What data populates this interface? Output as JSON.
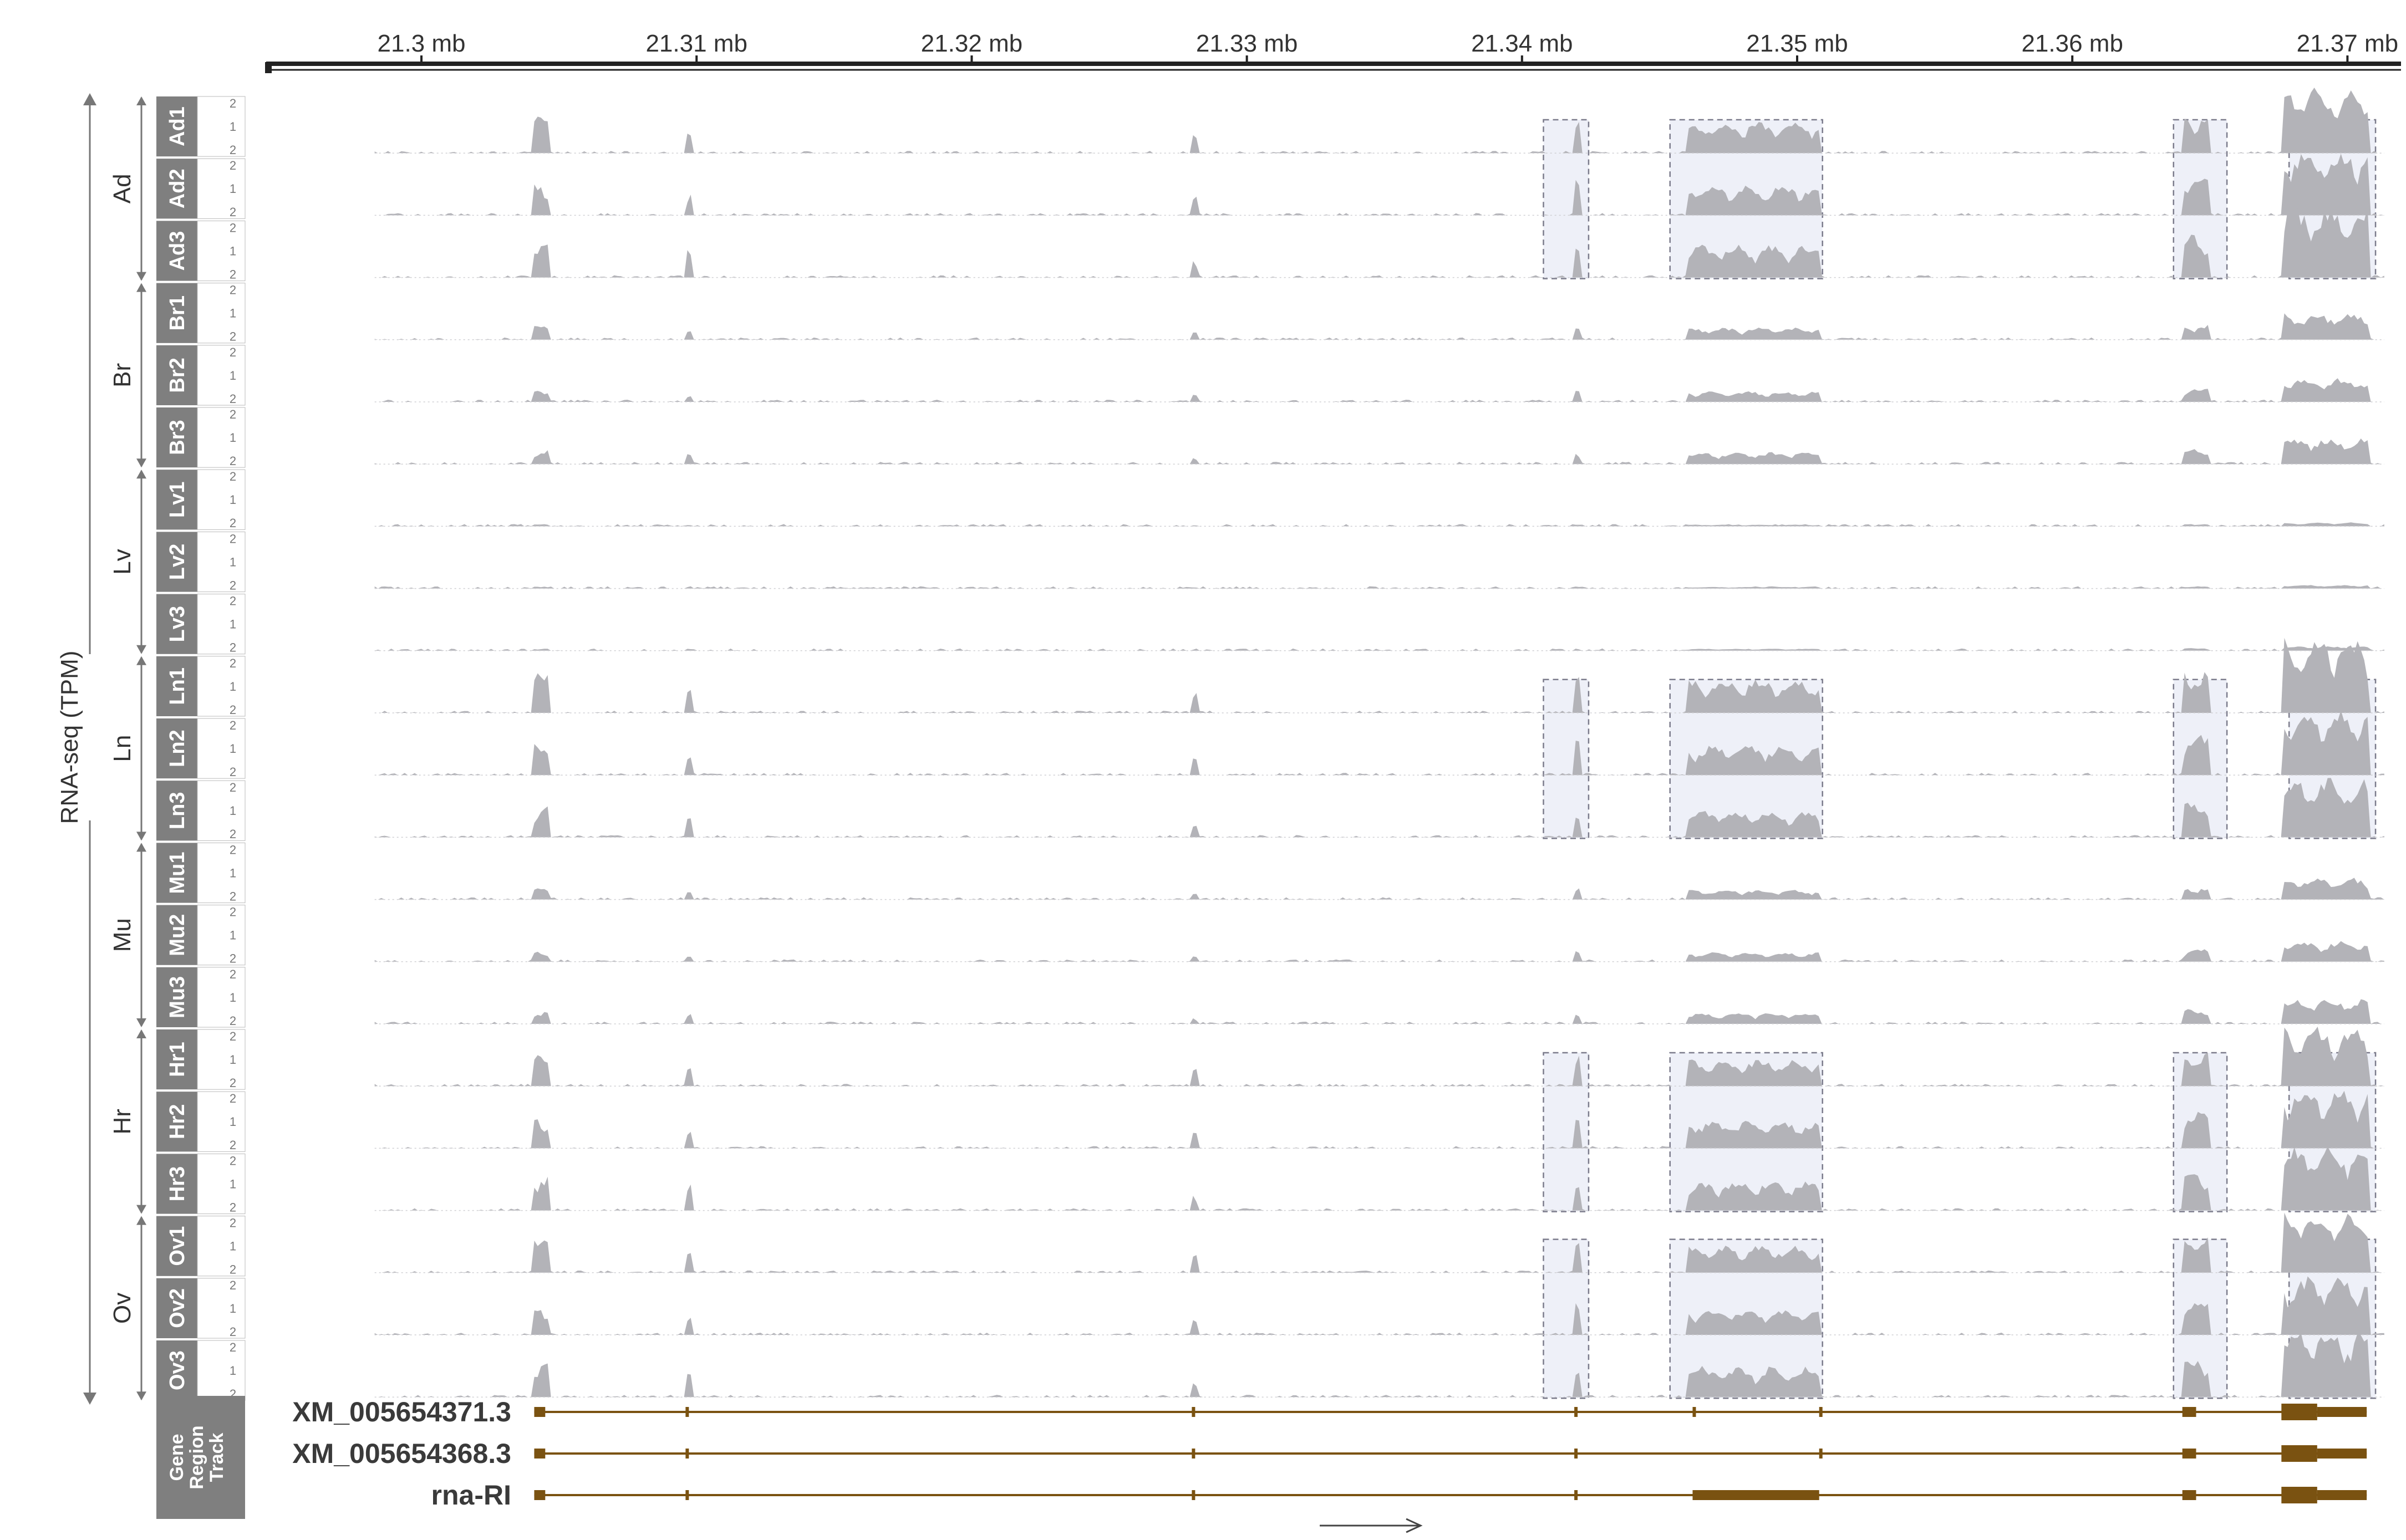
{
  "colors": {
    "coverage": "#b3b3b8",
    "sample_box": "#7f7f7f",
    "highlight_fill": "#eef0f8",
    "highlight_stroke": "#7c7c8c",
    "gene": "#7a5211",
    "axis": "#222222"
  },
  "axis": {
    "ticks": [
      {
        "pos": 21.3,
        "label": "21.3 mb"
      },
      {
        "pos": 21.31,
        "label": "21.31 mb"
      },
      {
        "pos": 21.32,
        "label": "21.32 mb"
      },
      {
        "pos": 21.33,
        "label": "21.33 mb"
      },
      {
        "pos": 21.34,
        "label": "21.34 mb"
      },
      {
        "pos": 21.35,
        "label": "21.35 mb"
      },
      {
        "pos": 21.36,
        "label": "21.36 mb"
      },
      {
        "pos": 21.37,
        "label": "21.37 mb"
      }
    ],
    "unit": "mb"
  },
  "y_label": "RNA-seq (TPM)",
  "scale_labels": [
    "2",
    "1",
    "2"
  ],
  "groups": [
    {
      "name": "Ad",
      "samples": [
        "Ad1",
        "Ad2",
        "Ad3"
      ],
      "highlighted": true
    },
    {
      "name": "Br",
      "samples": [
        "Br1",
        "Br2",
        "Br3"
      ],
      "highlighted": false
    },
    {
      "name": "Lv",
      "samples": [
        "Lv1",
        "Lv2",
        "Lv3"
      ],
      "highlighted": false
    },
    {
      "name": "Ln",
      "samples": [
        "Ln1",
        "Ln2",
        "Ln3"
      ],
      "highlighted": true
    },
    {
      "name": "Mu",
      "samples": [
        "Mu1",
        "Mu2",
        "Mu3"
      ],
      "highlighted": false
    },
    {
      "name": "Hr",
      "samples": [
        "Hr1",
        "Hr2",
        "Hr3"
      ],
      "highlighted": true
    },
    {
      "name": "Ov",
      "samples": [
        "Ov1",
        "Ov2",
        "Ov3"
      ],
      "highlighted": true
    }
  ],
  "highlight_regions_mb": [
    [
      21.3409,
      21.3423
    ],
    [
      21.3455,
      21.3508
    ],
    [
      21.3638,
      21.3655
    ],
    [
      21.368,
      21.3709
    ]
  ],
  "gene_track": {
    "label_lines": [
      "Gene",
      "Region",
      "Track"
    ],
    "direction": "forward",
    "transcripts": [
      {
        "name": "XM_005654371.3",
        "start": 21.3041,
        "end": 21.3707,
        "exons": [
          [
            21.3041,
            21.3045
          ],
          [
            21.3096,
            21.3097
          ],
          [
            21.328,
            21.3281
          ],
          [
            21.3419,
            21.342
          ],
          [
            21.3462,
            21.3463
          ],
          [
            21.3508,
            21.3509
          ],
          [
            21.364,
            21.3645
          ],
          [
            21.3676,
            21.3689
          ],
          [
            21.3689,
            21.3707
          ]
        ]
      },
      {
        "name": "XM_005654368.3",
        "start": 21.3041,
        "end": 21.3707,
        "exons": [
          [
            21.3041,
            21.3045
          ],
          [
            21.3096,
            21.3097
          ],
          [
            21.328,
            21.3281
          ],
          [
            21.3419,
            21.342
          ],
          [
            21.3508,
            21.3509
          ],
          [
            21.364,
            21.3645
          ],
          [
            21.3676,
            21.3689
          ],
          [
            21.3689,
            21.3707
          ]
        ]
      },
      {
        "name": "rna-RI",
        "start": 21.3041,
        "end": 21.3707,
        "exons": [
          [
            21.3041,
            21.3045
          ],
          [
            21.3096,
            21.3097
          ],
          [
            21.328,
            21.3281
          ],
          [
            21.3419,
            21.342
          ],
          [
            21.3462,
            21.3508
          ],
          [
            21.364,
            21.3645
          ],
          [
            21.3676,
            21.3689
          ],
          [
            21.3689,
            21.3707
          ]
        ]
      }
    ]
  }
}
